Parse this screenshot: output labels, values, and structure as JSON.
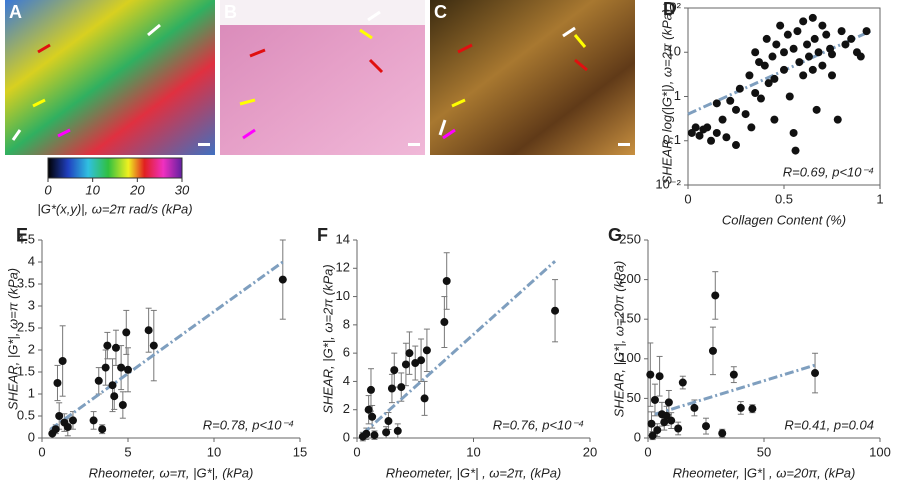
{
  "figure": {
    "panel_labels": [
      "A",
      "B",
      "C"
    ],
    "colorbar": {
      "label": "|G*(x,y)|, ω=2π rad/s (kPa)",
      "lim": [
        0,
        30
      ],
      "ticks": [
        0,
        10,
        20,
        30
      ]
    }
  },
  "chart_data": [
    {
      "type": "scatter",
      "panel": "D",
      "log_y": true,
      "color": "#111111",
      "fit_color": "#7f9fbf",
      "x_label": "Collagen Content (%)",
      "y_label": "SHEAR, log(|G*|), ω=2π (kPa)",
      "annotation": "R=0.69, p<10⁻⁴",
      "xlim": [
        0,
        1
      ],
      "xticks": [
        0,
        0.5,
        1
      ],
      "ylim": [
        0.01,
        100
      ],
      "yticks": [
        {
          "value": 0.01,
          "label": "10⁻²"
        },
        0.1,
        1,
        10,
        {
          "value": 100,
          "label": "10²"
        }
      ],
      "x": [
        0.02,
        0.04,
        0.06,
        0.08,
        0.1,
        0.12,
        0.15,
        0.18,
        0.2,
        0.22,
        0.25,
        0.27,
        0.3,
        0.32,
        0.33,
        0.35,
        0.37,
        0.38,
        0.4,
        0.41,
        0.42,
        0.44,
        0.45,
        0.46,
        0.48,
        0.5,
        0.5,
        0.52,
        0.53,
        0.55,
        0.56,
        0.57,
        0.58,
        0.6,
        0.6,
        0.62,
        0.63,
        0.65,
        0.66,
        0.67,
        0.68,
        0.7,
        0.7,
        0.72,
        0.74,
        0.75,
        0.78,
        0.8,
        0.82,
        0.85,
        0.88,
        0.9,
        0.93,
        0.35,
        0.45,
        0.55,
        0.25,
        0.15,
        0.65,
        0.75
      ],
      "values": [
        0.15,
        0.2,
        0.13,
        0.18,
        0.2,
        0.1,
        0.15,
        0.3,
        0.12,
        0.8,
        0.5,
        1.5,
        0.4,
        3,
        0.2,
        10,
        6,
        0.9,
        5,
        20,
        2,
        8,
        0.3,
        15,
        40,
        4,
        10,
        25,
        1,
        12,
        0.06,
        30,
        6,
        50,
        3,
        15,
        8,
        60,
        20,
        0.5,
        10,
        40,
        5,
        25,
        12,
        9,
        0.3,
        30,
        15,
        20,
        10,
        8,
        30,
        1.2,
        2.5,
        0.15,
        0.08,
        0.7,
        4,
        3
      ],
      "fit": {
        "x": [
          0,
          0.95
        ],
        "y": [
          0.4,
          30
        ]
      }
    },
    {
      "type": "scatter",
      "panel": "E",
      "color": "#111111",
      "fit_color": "#7f9fbf",
      "x_label": "Rheometer, ω=π, |G*|, (kPa)",
      "y_label": "SHEAR, |G*|, ω=π (kPa)",
      "annotation": "R=0.78, p<10⁻⁴",
      "xlim": [
        0,
        15
      ],
      "xticks": [
        0,
        5,
        10,
        15
      ],
      "ylim": [
        0,
        4.5
      ],
      "yticks": [
        0,
        0.5,
        1,
        1.5,
        2,
        2.5,
        3,
        3.5,
        4,
        4.5
      ],
      "x": [
        0.6,
        0.8,
        0.9,
        1.0,
        1.2,
        1.3,
        1.5,
        1.8,
        3.0,
        3.3,
        3.5,
        3.7,
        3.8,
        4.1,
        4.2,
        4.3,
        4.6,
        4.7,
        4.9,
        5.0,
        6.2,
        6.5,
        14
      ],
      "values": [
        0.1,
        0.2,
        1.25,
        0.5,
        1.75,
        0.35,
        0.25,
        0.4,
        0.4,
        1.3,
        0.2,
        1.6,
        2.1,
        1.2,
        0.95,
        2.05,
        1.6,
        0.75,
        2.4,
        1.55,
        2.45,
        2.1,
        3.6
      ],
      "errors": [
        0.1,
        0.1,
        0.4,
        0.3,
        0.8,
        0.2,
        0.2,
        0.2,
        0.2,
        0.3,
        0.1,
        0.4,
        0.3,
        0.6,
        0.3,
        0.4,
        0.5,
        0.3,
        0.5,
        0.5,
        0.5,
        0.8,
        0.9
      ],
      "fit": {
        "x": [
          0.5,
          14
        ],
        "y": [
          0.2,
          4.0
        ]
      }
    },
    {
      "type": "scatter",
      "panel": "F",
      "color": "#111111",
      "fit_color": "#7f9fbf",
      "x_label": "Rheometer, |G*| , ω=2π, (kPa)",
      "y_label": "SHEAR, |G*|, ω=2π (kPa)",
      "annotation": "R=0.76, p<10⁻⁴",
      "xlim": [
        0,
        20
      ],
      "xticks": [
        0,
        10,
        20
      ],
      "ylim": [
        0,
        14
      ],
      "yticks": [
        0,
        2,
        4,
        6,
        8,
        10,
        12,
        14
      ],
      "x": [
        0.5,
        0.8,
        1.0,
        1.2,
        1.3,
        1.5,
        2.5,
        2.7,
        3.0,
        3.2,
        3.5,
        3.8,
        4.2,
        4.5,
        5,
        5.5,
        5.8,
        6,
        7.5,
        7.7,
        17
      ],
      "values": [
        0.1,
        0.3,
        2,
        3.4,
        1.5,
        0.2,
        0.4,
        1.2,
        3.5,
        4.8,
        0.5,
        3.6,
        5.2,
        6,
        5.3,
        5.5,
        2.8,
        6.2,
        8.2,
        11.1,
        9
      ],
      "errors": [
        0.3,
        0.4,
        1,
        1.5,
        0.8,
        0.3,
        0.4,
        0.6,
        1,
        1.2,
        0.5,
        1,
        1.5,
        1.5,
        1.2,
        1.5,
        1.2,
        1.5,
        1.8,
        2,
        2.2
      ],
      "fit": {
        "x": [
          0.5,
          17
        ],
        "y": [
          0.3,
          12.5
        ]
      }
    },
    {
      "type": "scatter",
      "panel": "G",
      "color": "#111111",
      "fit_color": "#7f9fbf",
      "x_label": "Rheometer, |G*| , ω=20π, (kPa)",
      "y_label": "SHEAR, |G*|, ω=20π (kPa)",
      "annotation": "R=0.41, p=0.04",
      "xlim": [
        0,
        100
      ],
      "xticks": [
        0,
        50,
        100
      ],
      "ylim": [
        0,
        250
      ],
      "yticks": [
        0,
        50,
        100,
        150,
        200,
        250
      ],
      "x": [
        1,
        1.5,
        2,
        3,
        4,
        5,
        6,
        7,
        8,
        9,
        10,
        13,
        15,
        20,
        25,
        28,
        29,
        32,
        37,
        40,
        45,
        72
      ],
      "values": [
        80,
        18,
        3,
        48,
        10,
        78,
        30,
        20,
        28,
        45,
        22,
        12,
        70,
        38,
        15,
        110,
        180,
        6,
        80,
        38,
        37,
        82
      ],
      "errors": [
        40,
        15,
        5,
        20,
        8,
        25,
        15,
        10,
        12,
        15,
        10,
        8,
        8,
        10,
        10,
        30,
        30,
        5,
        10,
        8,
        5,
        25
      ],
      "fit": {
        "x": [
          3,
          72
        ],
        "y": [
          30,
          92
        ]
      }
    }
  ]
}
